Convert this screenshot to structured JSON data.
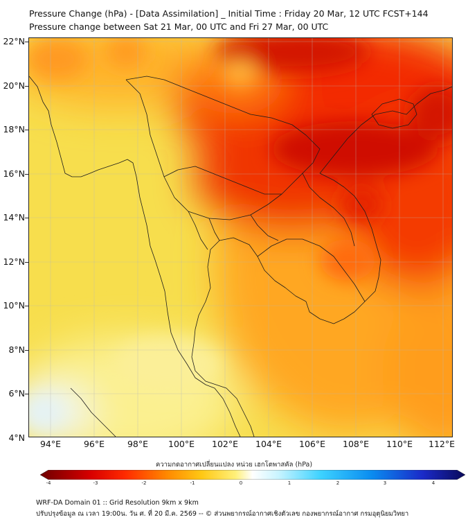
{
  "title": {
    "line1": "Pressure Change (hPa) - [Data Assimilation] _ Initial Time : Friday 20 Mar, 12 UTC FCST+144",
    "line2": "Pressure change between Sat 21 Mar, 00 UTC and Fri 27 Mar, 00 UTC"
  },
  "map": {
    "lat_labels": [
      "22°N",
      "20°N",
      "18°N",
      "16°N",
      "14°N",
      "12°N",
      "10°N",
      "8°N",
      "6°N",
      "4°N"
    ],
    "lon_labels": [
      "94°E",
      "96°E",
      "98°E",
      "100°E",
      "102°E",
      "104°E",
      "106°E",
      "108°E",
      "110°E",
      "112°E"
    ],
    "lat_range": [
      4,
      22
    ],
    "lon_range": [
      93.1,
      112.5
    ],
    "grid": true
  },
  "colorbar": {
    "label": "ความกดอากาศเปลี่ยนแปลง หน่วย เฮกโตพาสคัล (hPa)",
    "range": [
      -4,
      4
    ],
    "ticks": [
      "-4",
      "-3",
      "-2",
      "-1",
      "0",
      "1",
      "2",
      "3",
      "4"
    ],
    "colors": {
      "neg_strong": "#7a0000",
      "neg_mid": "#ff1a00",
      "neg_weak": "#ff9900",
      "near_zero_neg": "#ffe03a",
      "zero": "#ffffff",
      "pos_weak": "#bfefff",
      "pos_mid": "#00b4ff",
      "pos_strong": "#101070"
    }
  },
  "footer": {
    "line1": "WRF-DA Domain 01 :: Grid Resolution 9km x 9km",
    "line2": "ปรับปรุงข้อมูล ณ เวลา 19:00น. วัน ศ. ที่ 20 มี.ค. 2569 -- © ส่วนพยากรณ์อากาศเชิงตัวเลข กองพยากรณ์อากาศ กรมอุตุนิยมวิทยา"
  }
}
